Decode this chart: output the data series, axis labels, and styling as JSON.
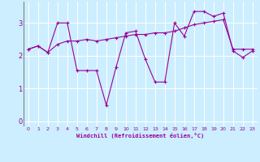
{
  "xlabel": "Windchill (Refroidissement éolien,°C)",
  "background_color": "#cceeff",
  "line_color": "#990099",
  "grid_color": "#ffffff",
  "xlim": [
    -0.5,
    23.5
  ],
  "ylim": [
    -0.15,
    3.65
  ],
  "xticks": [
    0,
    1,
    2,
    3,
    4,
    5,
    6,
    7,
    8,
    9,
    10,
    11,
    12,
    13,
    14,
    15,
    16,
    17,
    18,
    19,
    20,
    21,
    22,
    23
  ],
  "yticks": [
    0,
    1,
    2,
    3
  ],
  "series1": {
    "x": [
      0,
      1,
      2,
      3,
      4,
      5,
      6,
      7,
      8,
      9,
      10,
      11,
      12,
      13,
      14,
      15,
      16,
      17,
      18,
      19,
      20,
      21,
      22,
      23
    ],
    "y": [
      2.2,
      2.3,
      2.1,
      3.0,
      3.0,
      1.55,
      1.55,
      1.55,
      0.5,
      1.65,
      2.7,
      2.75,
      1.9,
      1.2,
      1.2,
      3.0,
      2.6,
      3.35,
      3.35,
      3.2,
      3.3,
      2.15,
      1.95,
      2.15
    ]
  },
  "series2": {
    "x": [
      0,
      1,
      2,
      3,
      4,
      5,
      6,
      7,
      8,
      9,
      10,
      11,
      12,
      13,
      14,
      15,
      16,
      17,
      18,
      19,
      20,
      21,
      22,
      23
    ],
    "y": [
      2.2,
      2.3,
      2.1,
      2.35,
      2.45,
      2.45,
      2.5,
      2.45,
      2.5,
      2.55,
      2.6,
      2.65,
      2.65,
      2.7,
      2.7,
      2.75,
      2.85,
      2.95,
      3.0,
      3.05,
      3.1,
      2.2,
      2.2,
      2.2
    ]
  }
}
